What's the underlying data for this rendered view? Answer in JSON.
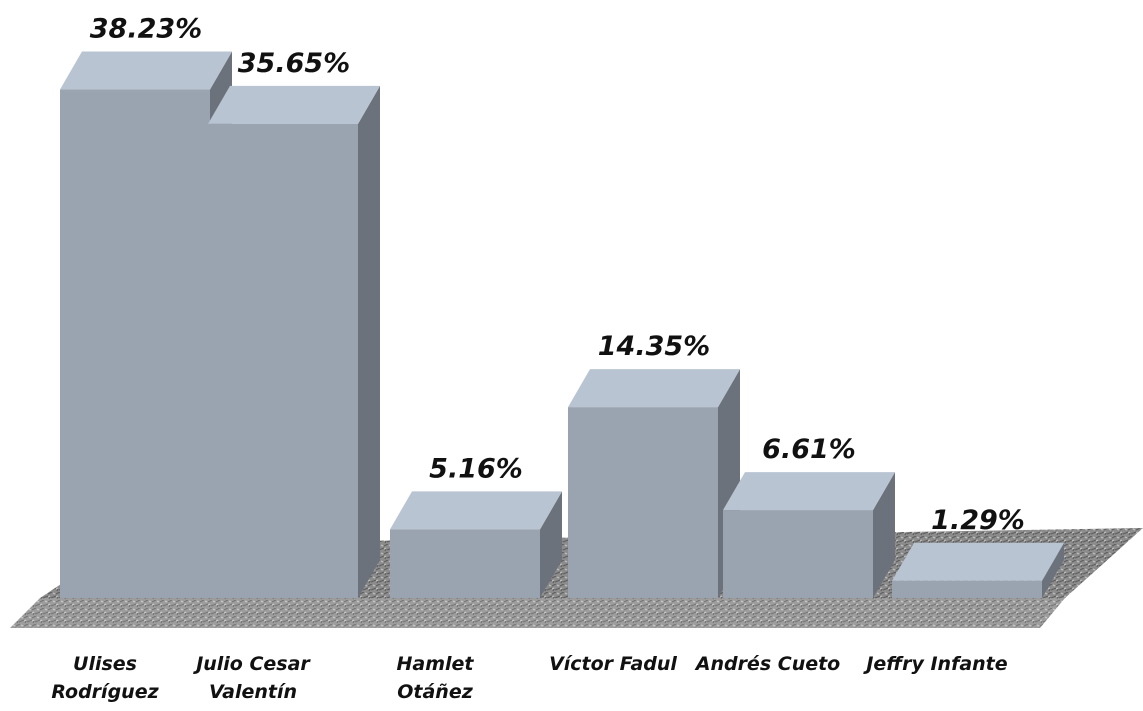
{
  "chart_data": {
    "type": "bar3d",
    "categories": [
      [
        "Ulises",
        "Rodríguez"
      ],
      [
        "Julio Cesar",
        "Valentín"
      ],
      [
        "Hamlet",
        "Otáñez"
      ],
      [
        "Víctor Fadul"
      ],
      [
        "Andrés Cueto"
      ],
      [
        "Jeffry Infante"
      ]
    ],
    "values": [
      38.23,
      35.65,
      5.16,
      14.35,
      6.61,
      1.29
    ],
    "value_labels": [
      "38.23%",
      "35.65%",
      "5.16%",
      "14.35%",
      "6.61%",
      "1.29%"
    ],
    "color": "#9aa3b0"
  }
}
